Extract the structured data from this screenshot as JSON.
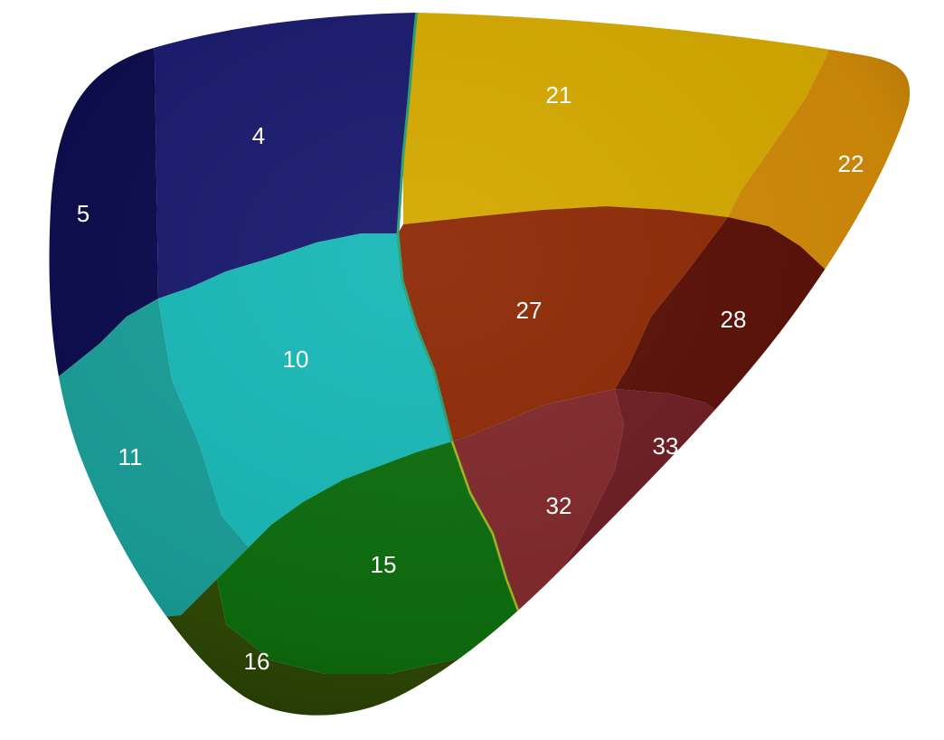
{
  "segments": [
    {
      "id": "4",
      "label": "4",
      "color": "#1a1a6e"
    },
    {
      "id": "5",
      "label": "5",
      "color": "#0b0b4d"
    },
    {
      "id": "10",
      "label": "10",
      "color": "#19b8b8"
    },
    {
      "id": "11",
      "label": "11",
      "color": "#1a9e98"
    },
    {
      "id": "15",
      "label": "15",
      "color": "#0e6e0e"
    },
    {
      "id": "16",
      "label": "16",
      "color": "#2f4a06"
    },
    {
      "id": "21",
      "label": "21",
      "color": "#d4a900"
    },
    {
      "id": "22",
      "label": "22",
      "color": "#d08a08"
    },
    {
      "id": "27",
      "label": "27",
      "color": "#8e2a06"
    },
    {
      "id": "28",
      "label": "28",
      "color": "#5a1006"
    },
    {
      "id": "32",
      "label": "32",
      "color": "#822a2c"
    },
    {
      "id": "33",
      "label": "33",
      "color": "#6e1e24"
    }
  ]
}
